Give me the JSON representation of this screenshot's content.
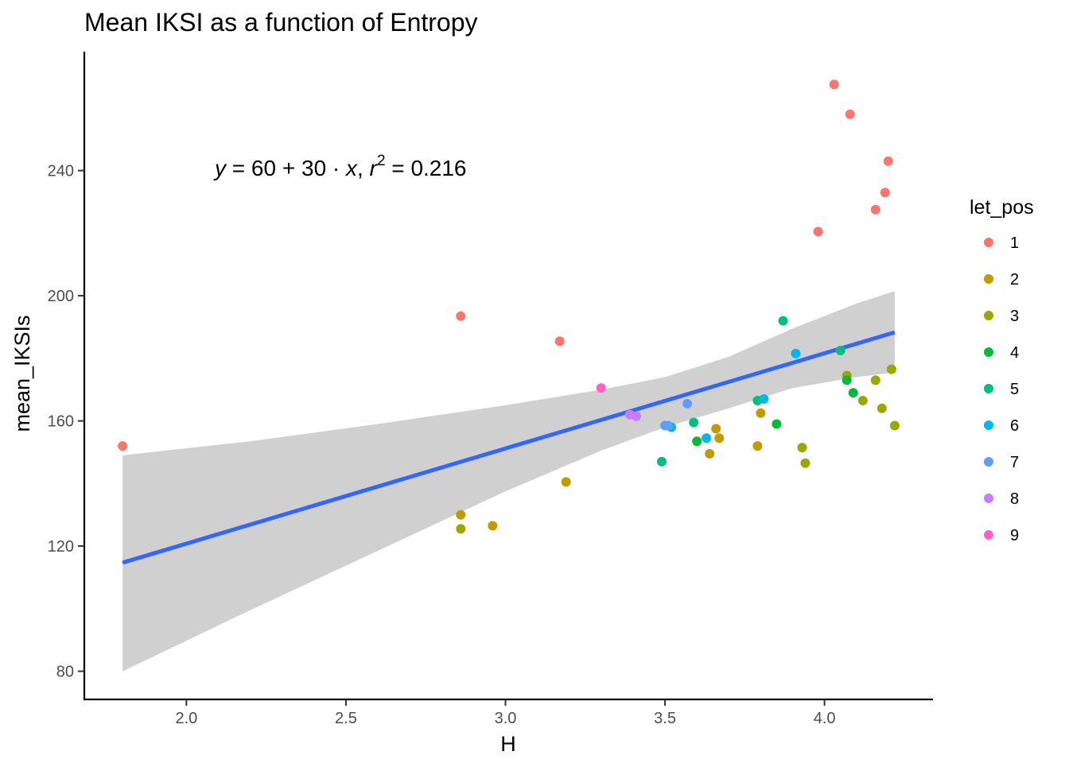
{
  "chart_data": {
    "type": "scatter",
    "title": "Mean IKSI as a function of Entropy",
    "xlabel": "H",
    "ylabel": "mean_IKSIs",
    "xlim": [
      1.68,
      4.34
    ],
    "ylim": [
      71,
      278
    ],
    "x_ticks": [
      2.0,
      2.5,
      3.0,
      3.5,
      4.0
    ],
    "x_tick_labels": [
      "2.0",
      "2.5",
      "3.0",
      "3.5",
      "4.0"
    ],
    "y_ticks": [
      80,
      120,
      160,
      200,
      240
    ],
    "y_tick_labels": [
      "80",
      "120",
      "160",
      "200",
      "240"
    ],
    "grid": false,
    "legend": {
      "title": "let_pos",
      "placement": "right",
      "labels": [
        "1",
        "2",
        "3",
        "4",
        "5",
        "6",
        "7",
        "8",
        "9"
      ],
      "colors": [
        "#F8766D",
        "#C49A00",
        "#99A800",
        "#00BA38",
        "#00BF7D",
        "#00B8E7",
        "#619CFF",
        "#C77CFF",
        "#FF61CC"
      ]
    },
    "annotation": {
      "y_var": "y",
      "x_var": "x",
      "intercept": "60",
      "slope": "30",
      "r_label": "r",
      "r_power": "2",
      "r2": "0.216"
    },
    "fit_line": {
      "x": [
        1.8,
        4.22
      ],
      "y": [
        114.7,
        188.3
      ],
      "color": "#3366FF"
    },
    "confidence_band": {
      "x": [
        1.8,
        2.2,
        2.6,
        3.0,
        3.3,
        3.5,
        3.7,
        3.9,
        4.1,
        4.22
      ],
      "lower": [
        80.0,
        99.5,
        118.5,
        137.5,
        150.5,
        158.0,
        164.0,
        170.5,
        174.0,
        175.5
      ],
      "upper": [
        149.0,
        153.5,
        159.0,
        165.0,
        170.0,
        174.0,
        180.5,
        189.5,
        197.5,
        201.5
      ],
      "color": "#d0d0d0"
    },
    "series": [
      {
        "name": "1",
        "color": "#F8766D",
        "points": [
          [
            1.8,
            152
          ],
          [
            2.86,
            193.5
          ],
          [
            3.17,
            185.5
          ],
          [
            3.98,
            220.5
          ],
          [
            4.03,
            267.5
          ],
          [
            4.08,
            258
          ],
          [
            4.16,
            227.5
          ],
          [
            4.19,
            233
          ],
          [
            4.2,
            243
          ]
        ]
      },
      {
        "name": "2",
        "color": "#C49A00",
        "points": [
          [
            2.86,
            130
          ],
          [
            2.96,
            126.5
          ],
          [
            3.19,
            140.5
          ],
          [
            3.64,
            149.5
          ],
          [
            3.66,
            157.5
          ],
          [
            3.67,
            154.5
          ],
          [
            3.79,
            152
          ],
          [
            3.8,
            162.5
          ]
        ]
      },
      {
        "name": "3",
        "color": "#99A800",
        "points": [
          [
            2.86,
            125.5
          ],
          [
            3.93,
            151.5
          ],
          [
            3.94,
            146.5
          ],
          [
            4.07,
            174.5
          ],
          [
            4.12,
            166.5
          ],
          [
            4.16,
            173
          ],
          [
            4.18,
            164
          ],
          [
            4.21,
            176.5
          ],
          [
            4.22,
            158.5
          ]
        ]
      },
      {
        "name": "4",
        "color": "#00BA38",
        "points": [
          [
            3.6,
            153.5
          ],
          [
            3.85,
            159
          ],
          [
            4.07,
            173
          ],
          [
            4.09,
            169
          ]
        ]
      },
      {
        "name": "5",
        "color": "#00BF7D",
        "points": [
          [
            3.49,
            147
          ],
          [
            3.59,
            159.5
          ],
          [
            3.79,
            166.5
          ],
          [
            3.87,
            192
          ],
          [
            4.05,
            182.5
          ]
        ]
      },
      {
        "name": "6",
        "color": "#00B8E7",
        "points": [
          [
            3.52,
            158
          ],
          [
            3.63,
            154.5
          ],
          [
            3.81,
            167
          ],
          [
            3.91,
            181.5
          ]
        ]
      },
      {
        "name": "7",
        "color": "#619CFF",
        "points": [
          [
            3.5,
            158.5
          ],
          [
            3.51,
            158.5
          ],
          [
            3.57,
            165.5
          ]
        ]
      },
      {
        "name": "8",
        "color": "#C77CFF",
        "points": [
          [
            3.39,
            162
          ],
          [
            3.41,
            161.5
          ]
        ]
      },
      {
        "name": "9",
        "color": "#FF61CC",
        "points": [
          [
            3.3,
            170.5
          ]
        ]
      }
    ]
  }
}
